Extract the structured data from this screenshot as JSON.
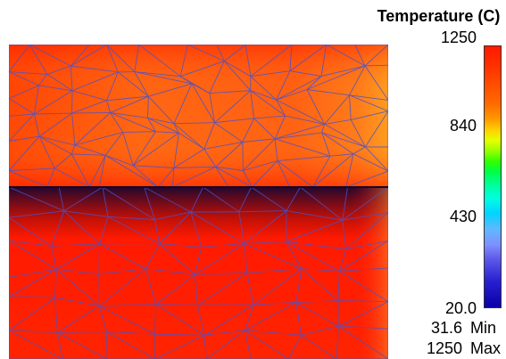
{
  "legend": {
    "title": "Temperature (C)",
    "ticks": [
      "1250",
      "840",
      "430",
      "20.0"
    ],
    "min_value": "31.6",
    "min_label": "Min",
    "max_value": "1250",
    "max_label": "Max"
  },
  "colors": {
    "hot": "#ff2a00",
    "warm": "#ff6a10",
    "edge_glow": "#ffb020",
    "mesh_edges": "#4a52c8",
    "shadow_band": "#2a0a40"
  },
  "view": {
    "hot_fraction_range": [
      0.9,
      1.0
    ]
  }
}
